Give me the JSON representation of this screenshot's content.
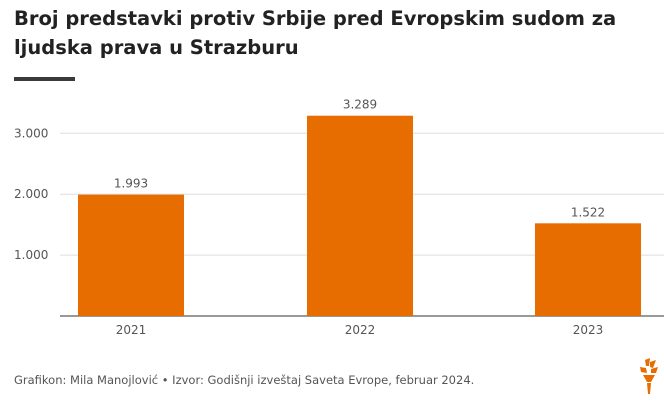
{
  "title": "Broj predstavki protiv Srbije pred Evropskim sudom za ljudska prava u Strazburu",
  "footer": "Grafikon: Mila Manojlović • Izvor: Godišnji izveštaj Saveta Evrope, februar 2024.",
  "logo_icon": "rferl-torch-logo-icon",
  "colors": {
    "bar": "#e86d00",
    "grid": "#dddddd",
    "axis_text": "#555555",
    "title_rule": "#3a3a3a",
    "logo": "#e86d00"
  },
  "chart_data": {
    "type": "bar",
    "title": "Broj predstavki protiv Srbije pred Evropskim sudom za ljudska prava u Strazburu",
    "categories": [
      "2021",
      "2022",
      "2023"
    ],
    "values": [
      1993,
      3289,
      1522
    ],
    "value_labels": [
      "1.993",
      "3.289",
      "1.522"
    ],
    "xlabel": "",
    "ylabel": "",
    "ylim": [
      0,
      3500
    ],
    "yticks": [
      1000,
      2000,
      3000
    ],
    "ytick_labels": [
      "1.000",
      "2.000",
      "3.000"
    ],
    "grid": true,
    "legend": "none"
  }
}
